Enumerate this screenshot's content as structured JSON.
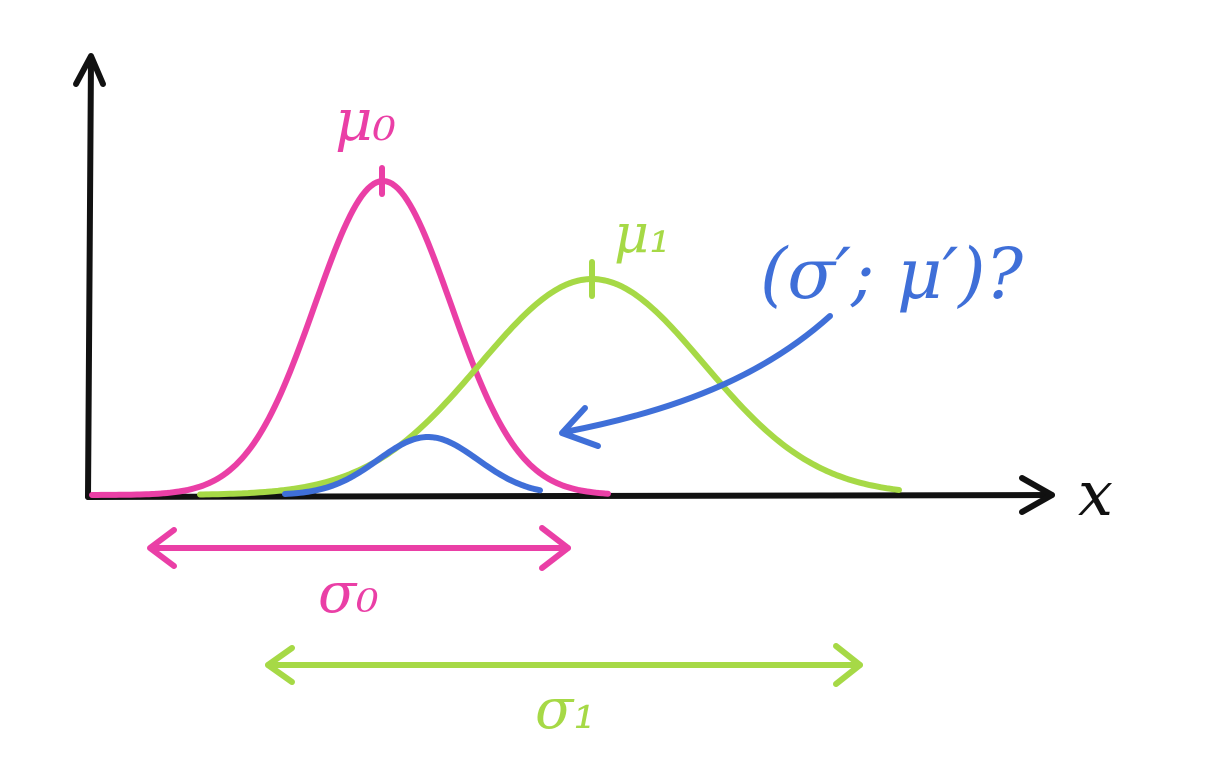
{
  "colors": {
    "axis": "#111111",
    "pink": "#ea3fa6",
    "green": "#a6d946",
    "blue": "#3f6fd8"
  },
  "labels": {
    "mu0": "μ₀",
    "mu1": "μ₁",
    "question": "(σ′; μ′)?",
    "x_axis": "x",
    "sigma0": "σ₀",
    "sigma1": "σ₁"
  },
  "distributions": [
    {
      "name": "pink",
      "mean_label": "μ₀",
      "sigma_label": "σ₀",
      "color": "pink"
    },
    {
      "name": "green",
      "mean_label": "μ₁",
      "sigma_label": "σ₁",
      "color": "green"
    },
    {
      "name": "blue",
      "product": true,
      "color": "blue"
    }
  ]
}
